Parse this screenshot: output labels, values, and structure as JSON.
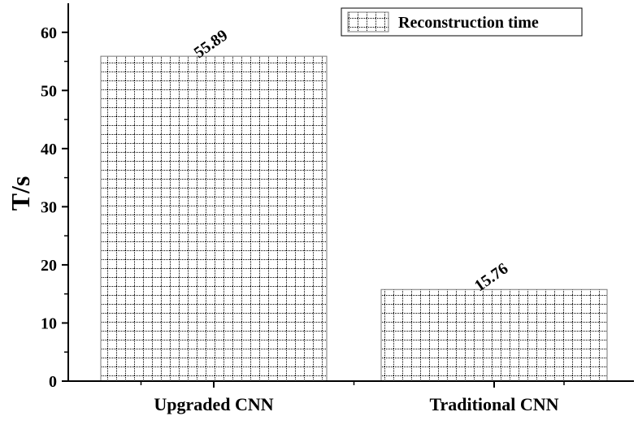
{
  "chart_data": {
    "type": "bar",
    "categories": [
      "Upgraded CNN",
      "Traditional CNN"
    ],
    "series": [
      {
        "name": "Reconstruction time",
        "values": [
          55.89,
          15.76
        ]
      }
    ],
    "data_labels": [
      "55.89",
      "15.76"
    ],
    "title": "",
    "xlabel": "",
    "ylabel": "T/s",
    "ylim": [
      0,
      65
    ],
    "yticks": [
      0,
      10,
      20,
      30,
      40,
      50,
      60
    ],
    "grid": false,
    "legend_position": "top-right",
    "bar_pattern": "dotted-grid",
    "colors": {
      "axis": "#000000",
      "bar_fill": "#ffffff",
      "pattern": "#000000"
    }
  }
}
